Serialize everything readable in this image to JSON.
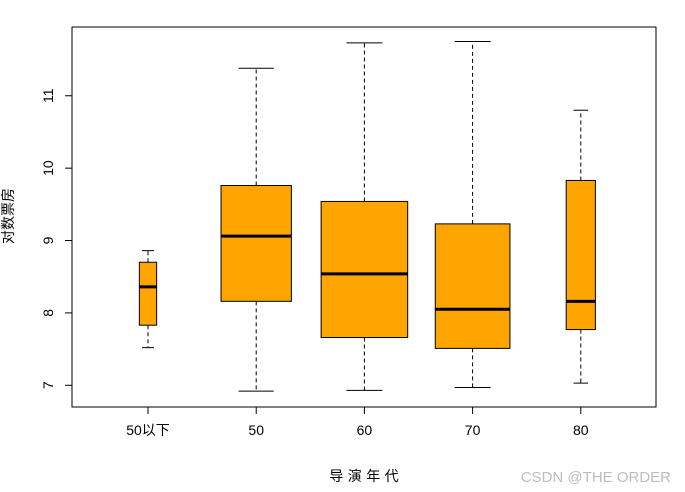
{
  "chart_data": {
    "type": "boxplot",
    "title": "",
    "xlabel": "导 演 年 代",
    "ylabel": "对数票房",
    "ylim": [
      6.7,
      11.95
    ],
    "yticks": [
      7,
      8,
      9,
      10,
      11
    ],
    "categories": [
      "50以下",
      "50",
      "60",
      "70",
      "80"
    ],
    "boxes": [
      {
        "name": "50以下",
        "min": 7.52,
        "q1": 7.83,
        "median": 8.36,
        "q3": 8.7,
        "max": 8.86,
        "width": 0.16
      },
      {
        "name": "50",
        "min": 6.92,
        "q1": 8.16,
        "median": 9.06,
        "q3": 9.76,
        "max": 11.38,
        "width": 0.65
      },
      {
        "name": "60",
        "min": 6.93,
        "q1": 7.66,
        "median": 8.54,
        "q3": 9.54,
        "max": 11.73,
        "width": 0.8
      },
      {
        "name": "70",
        "min": 6.97,
        "q1": 7.51,
        "median": 8.05,
        "q3": 9.23,
        "max": 11.75,
        "width": 0.69
      },
      {
        "name": "80",
        "min": 7.03,
        "q1": 7.77,
        "median": 8.16,
        "q3": 9.83,
        "max": 10.8,
        "width": 0.27
      }
    ],
    "box_fill": "#FFA500",
    "line_color": "#000000",
    "grid": false,
    "legend": "none"
  },
  "watermark": "CSDN @THE ORDER"
}
